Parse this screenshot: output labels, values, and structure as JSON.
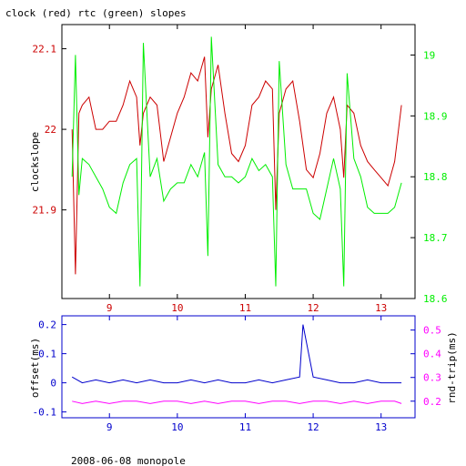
{
  "title": "clock (red) rtc (green) slopes",
  "footer": "2008-06-08 monopole",
  "colors": {
    "clock": "#cc0000",
    "rtc": "#00ee00",
    "offset": "#0000cc",
    "rndtrip": "#ff00ff",
    "frame": "#000000",
    "lowerFrame": "#0000cc"
  },
  "chart_data": [
    {
      "type": "line",
      "title": "clock (red) rtc (green) slopes",
      "xlabel": "",
      "x_ticks": [
        "9",
        "10",
        "11",
        "12",
        "13"
      ],
      "xlim": [
        8.3,
        13.5
      ],
      "ylabel": "clockslope",
      "ylim": [
        21.79,
        22.13
      ],
      "y_ticks": [
        "22.1",
        "22",
        "21.9"
      ],
      "y2lim": [
        18.6,
        19.05
      ],
      "y2_ticks": [
        "19",
        "18.9",
        "18.8",
        "18.7",
        "18.6"
      ],
      "grid": false,
      "series": [
        {
          "axis": "left",
          "x": [
            8.45,
            8.5,
            8.55,
            8.6,
            8.7,
            8.8,
            8.9,
            9.0,
            9.1,
            9.2,
            9.3,
            9.4,
            9.45,
            9.5,
            9.6,
            9.7,
            9.8,
            9.9,
            10.0,
            10.1,
            10.2,
            10.3,
            10.4,
            10.45,
            10.5,
            10.6,
            10.7,
            10.8,
            10.9,
            11.0,
            11.1,
            11.2,
            11.3,
            11.4,
            11.45,
            11.5,
            11.6,
            11.7,
            11.8,
            11.9,
            12.0,
            12.1,
            12.2,
            12.3,
            12.4,
            12.45,
            12.5,
            12.6,
            12.7,
            12.8,
            12.9,
            13.0,
            13.1,
            13.2,
            13.3
          ],
          "y": [
            22.0,
            21.82,
            22.02,
            22.03,
            22.04,
            22.0,
            22.0,
            22.01,
            22.01,
            22.03,
            22.06,
            22.04,
            21.98,
            22.02,
            22.04,
            22.03,
            21.96,
            21.99,
            22.02,
            22.04,
            22.07,
            22.06,
            22.09,
            21.99,
            22.05,
            22.08,
            22.02,
            21.97,
            21.96,
            21.98,
            22.03,
            22.04,
            22.06,
            22.05,
            21.9,
            22.02,
            22.05,
            22.06,
            22.01,
            21.95,
            21.94,
            21.97,
            22.02,
            22.04,
            22.0,
            21.94,
            22.03,
            22.02,
            21.98,
            21.96,
            21.95,
            21.94,
            21.93,
            21.96,
            22.03
          ]
        },
        {
          "axis": "right",
          "x": [
            8.45,
            8.5,
            8.55,
            8.6,
            8.7,
            8.8,
            8.9,
            9.0,
            9.1,
            9.2,
            9.3,
            9.4,
            9.45,
            9.5,
            9.6,
            9.7,
            9.8,
            9.9,
            10.0,
            10.1,
            10.2,
            10.3,
            10.4,
            10.45,
            10.5,
            10.6,
            10.7,
            10.8,
            10.9,
            11.0,
            11.1,
            11.2,
            11.3,
            11.4,
            11.45,
            11.5,
            11.6,
            11.7,
            11.8,
            11.9,
            12.0,
            12.1,
            12.2,
            12.3,
            12.4,
            12.45,
            12.5,
            12.6,
            12.7,
            12.8,
            12.9,
            13.0,
            13.1,
            13.2,
            13.3
          ],
          "y": [
            18.8,
            19.0,
            18.77,
            18.83,
            18.82,
            18.8,
            18.78,
            18.75,
            18.74,
            18.79,
            18.82,
            18.83,
            18.62,
            19.02,
            18.8,
            18.83,
            18.76,
            18.78,
            18.79,
            18.79,
            18.82,
            18.8,
            18.84,
            18.67,
            19.03,
            18.82,
            18.8,
            18.8,
            18.79,
            18.8,
            18.83,
            18.81,
            18.82,
            18.8,
            18.62,
            18.99,
            18.82,
            18.78,
            18.78,
            18.78,
            18.74,
            18.73,
            18.78,
            18.83,
            18.78,
            18.62,
            18.97,
            18.83,
            18.8,
            18.75,
            18.74,
            18.74,
            18.74,
            18.75,
            18.79
          ]
        }
      ]
    },
    {
      "type": "line",
      "xlabel": "",
      "x_ticks": [
        "9",
        "10",
        "11",
        "12",
        "13"
      ],
      "xlim": [
        8.3,
        13.5
      ],
      "ylabel": "offset(ms)",
      "ylim": [
        -0.12,
        0.23
      ],
      "y_ticks": [
        "0.2",
        "0.1",
        "0",
        "-0.1"
      ],
      "y2label": "rnd-trip(ms)",
      "y2lim": [
        0.13,
        0.56
      ],
      "y2_ticks": [
        "0.5",
        "0.4",
        "0.3",
        "0.2"
      ],
      "grid": false,
      "series": [
        {
          "axis": "left",
          "x": [
            8.45,
            8.6,
            8.8,
            9.0,
            9.2,
            9.4,
            9.6,
            9.8,
            10.0,
            10.2,
            10.4,
            10.6,
            10.8,
            11.0,
            11.2,
            11.4,
            11.6,
            11.8,
            11.85,
            12.0,
            12.2,
            12.4,
            12.6,
            12.8,
            13.0,
            13.2,
            13.3
          ],
          "y": [
            0.02,
            0.0,
            0.01,
            0.0,
            0.01,
            0.0,
            0.01,
            0.0,
            0.0,
            0.01,
            0.0,
            0.01,
            0.0,
            0.0,
            0.01,
            0.0,
            0.01,
            0.02,
            0.2,
            0.02,
            0.01,
            0.0,
            0.0,
            0.01,
            0.0,
            0.0,
            0.0
          ]
        },
        {
          "axis": "right",
          "x": [
            8.45,
            8.6,
            8.8,
            9.0,
            9.2,
            9.4,
            9.6,
            9.8,
            10.0,
            10.2,
            10.4,
            10.6,
            10.8,
            11.0,
            11.2,
            11.4,
            11.6,
            11.8,
            12.0,
            12.2,
            12.4,
            12.6,
            12.8,
            13.0,
            13.2,
            13.3
          ],
          "y": [
            0.2,
            0.19,
            0.2,
            0.19,
            0.2,
            0.2,
            0.19,
            0.2,
            0.2,
            0.19,
            0.2,
            0.19,
            0.2,
            0.2,
            0.19,
            0.2,
            0.2,
            0.19,
            0.2,
            0.2,
            0.19,
            0.2,
            0.19,
            0.2,
            0.2,
            0.19
          ]
        }
      ]
    }
  ]
}
